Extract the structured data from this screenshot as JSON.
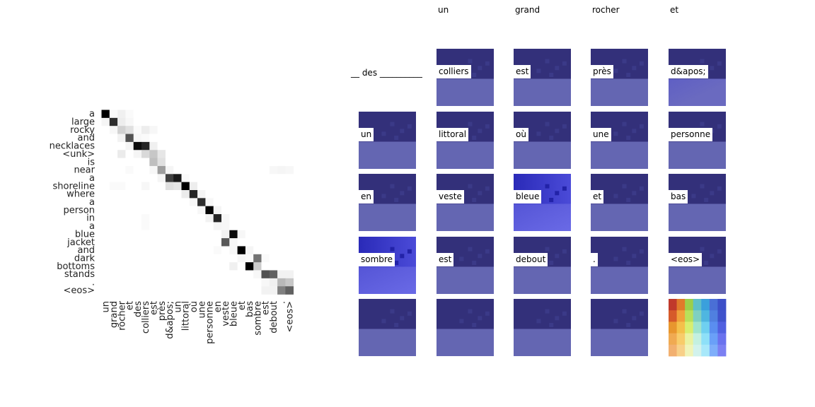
{
  "chart_data": [
    {
      "type": "heatmap",
      "title": "",
      "xlabel": "",
      "ylabel": "",
      "grid": false,
      "y_labels": [
        "a",
        "large",
        "rocky",
        "and",
        "necklaces",
        "<unk>",
        "is",
        "near",
        "a",
        "shoreline",
        "where",
        "a",
        "person",
        "in",
        "a",
        "blue",
        "jacket",
        "and",
        "dark",
        "bottoms",
        "stands",
        ".",
        "<eos>"
      ],
      "x_labels": [
        "un",
        "grand",
        "rocher",
        "et",
        "des",
        "colliers",
        "est",
        "près",
        "d&apos;",
        "un",
        "littoral",
        "où",
        "une",
        "personne",
        "en",
        "veste",
        "bleue",
        "et",
        "bas",
        "sombre",
        "est",
        "debout",
        ".",
        "<eos>"
      ],
      "values": [
        [
          1.0,
          0.02,
          0.06,
          0.02,
          0,
          0,
          0,
          0,
          0,
          0,
          0,
          0,
          0,
          0,
          0,
          0,
          0,
          0,
          0,
          0,
          0,
          0,
          0,
          0
        ],
        [
          0.04,
          0.82,
          0.07,
          0.03,
          0,
          0,
          0,
          0,
          0,
          0,
          0,
          0,
          0,
          0,
          0,
          0,
          0,
          0,
          0,
          0,
          0,
          0,
          0,
          0
        ],
        [
          0,
          0.03,
          0.18,
          0.12,
          0.02,
          0.07,
          0.03,
          0,
          0,
          0,
          0,
          0,
          0,
          0,
          0,
          0,
          0,
          0,
          0,
          0,
          0,
          0,
          0,
          0
        ],
        [
          0,
          0,
          0.05,
          0.68,
          0.03,
          0.02,
          0,
          0,
          0,
          0,
          0,
          0,
          0,
          0,
          0,
          0,
          0,
          0,
          0,
          0,
          0,
          0,
          0,
          0
        ],
        [
          0,
          0,
          0,
          0.04,
          0.95,
          0.85,
          0.06,
          0,
          0,
          0,
          0,
          0,
          0,
          0,
          0,
          0,
          0,
          0,
          0,
          0,
          0,
          0,
          0,
          0
        ],
        [
          0,
          0,
          0.08,
          0,
          0.04,
          0.15,
          0.22,
          0.1,
          0,
          0,
          0,
          0,
          0,
          0,
          0,
          0,
          0,
          0,
          0,
          0,
          0,
          0,
          0,
          0
        ],
        [
          0,
          0,
          0,
          0,
          0,
          0,
          0.25,
          0.12,
          0,
          0,
          0,
          0,
          0,
          0,
          0,
          0,
          0,
          0,
          0,
          0,
          0,
          0,
          0,
          0
        ],
        [
          0,
          0,
          0,
          0.02,
          0,
          0,
          0.03,
          0.38,
          0.04,
          0,
          0,
          0,
          0,
          0,
          0,
          0,
          0,
          0,
          0,
          0,
          0,
          0.03,
          0.04,
          0.03
        ],
        [
          0,
          0,
          0,
          0,
          0,
          0,
          0,
          0.04,
          0.75,
          0.9,
          0.02,
          0,
          0,
          0,
          0,
          0,
          0,
          0,
          0,
          0,
          0,
          0,
          0,
          0
        ],
        [
          0,
          0.02,
          0.02,
          0,
          0,
          0.03,
          0,
          0,
          0.12,
          0.1,
          1.0,
          0.07,
          0,
          0,
          0,
          0,
          0,
          0,
          0,
          0,
          0,
          0,
          0,
          0
        ],
        [
          0,
          0,
          0,
          0,
          0,
          0,
          0,
          0,
          0,
          0,
          0.08,
          0.85,
          0.04,
          0,
          0,
          0,
          0,
          0,
          0,
          0,
          0,
          0,
          0,
          0
        ],
        [
          0,
          0,
          0,
          0,
          0,
          0,
          0,
          0,
          0,
          0,
          0,
          0.03,
          0.82,
          0.03,
          0,
          0,
          0,
          0,
          0,
          0,
          0,
          0,
          0,
          0
        ],
        [
          0,
          0,
          0,
          0,
          0,
          0,
          0,
          0,
          0,
          0,
          0,
          0,
          0.03,
          0.98,
          0.04,
          0,
          0,
          0,
          0,
          0,
          0,
          0,
          0,
          0
        ],
        [
          0,
          0,
          0,
          0,
          0,
          0.02,
          0,
          0,
          0,
          0,
          0,
          0,
          0,
          0.05,
          0.85,
          0.03,
          0,
          0,
          0,
          0,
          0,
          0,
          0,
          0
        ],
        [
          0,
          0,
          0,
          0,
          0,
          0.02,
          0,
          0,
          0,
          0,
          0,
          0,
          0,
          0,
          0.04,
          0.03,
          0,
          0,
          0,
          0,
          0,
          0,
          0,
          0
        ],
        [
          0,
          0,
          0,
          0,
          0,
          0,
          0,
          0,
          0,
          0,
          0,
          0,
          0,
          0,
          0,
          0.05,
          0.95,
          0.03,
          0,
          0,
          0,
          0,
          0,
          0
        ],
        [
          0,
          0,
          0,
          0,
          0,
          0,
          0,
          0,
          0,
          0,
          0,
          0,
          0,
          0,
          0,
          0.65,
          0.03,
          0,
          0,
          0,
          0,
          0,
          0,
          0
        ],
        [
          0,
          0,
          0,
          0,
          0,
          0,
          0,
          0,
          0,
          0,
          0,
          0,
          0,
          0,
          0.02,
          0,
          0.03,
          1.0,
          0.04,
          0,
          0,
          0,
          0,
          0
        ],
        [
          0,
          0,
          0,
          0,
          0,
          0,
          0,
          0,
          0,
          0,
          0,
          0,
          0,
          0,
          0,
          0,
          0,
          0.03,
          0.02,
          0.55,
          0.02,
          0,
          0,
          0
        ],
        [
          0,
          0,
          0,
          0,
          0,
          0,
          0,
          0,
          0,
          0,
          0,
          0,
          0,
          0,
          0,
          0,
          0.06,
          0,
          1.0,
          0.2,
          0,
          0,
          0,
          0
        ],
        [
          0,
          0,
          0,
          0,
          0,
          0,
          0,
          0,
          0,
          0,
          0,
          0,
          0,
          0,
          0,
          0,
          0,
          0,
          0,
          0.03,
          0.68,
          0.62,
          0.05,
          0.05
        ],
        [
          0,
          0,
          0,
          0,
          0,
          0,
          0,
          0,
          0,
          0,
          0,
          0,
          0,
          0,
          0,
          0,
          0,
          0,
          0,
          0,
          0.03,
          0.06,
          0.28,
          0.22
        ],
        [
          0,
          0,
          0,
          0,
          0,
          0,
          0,
          0,
          0,
          0,
          0,
          0,
          0,
          0,
          0,
          0,
          0,
          0,
          0,
          0,
          0.05,
          0.05,
          0.5,
          0.62
        ]
      ],
      "colormap": "greys"
    },
    {
      "type": "heatmap",
      "title": "",
      "query_label": "__ des __________",
      "column_headers": [
        "un",
        "grand",
        "rocher",
        "et"
      ],
      "colormap": "jet",
      "grid": false,
      "words": [
        "colliers",
        "est",
        "près",
        "d&apos;",
        "un",
        "littoral",
        "où",
        "une",
        "personne",
        "en",
        "veste",
        "bleue",
        "et",
        "bas",
        "sombre",
        "est",
        "debout",
        ".",
        "<eos>",
        "",
        "",
        "",
        "",
        ""
      ],
      "cells": [
        {
          "row": 0,
          "col": 0,
          "empty": true
        },
        {
          "row": 0,
          "col": 1,
          "tone": "dark"
        },
        {
          "row": 0,
          "col": 2,
          "tone": "dark"
        },
        {
          "row": 0,
          "col": 3,
          "tone": "dark"
        },
        {
          "row": 0,
          "col": 4,
          "tone": "dark-tl"
        },
        {
          "row": 1,
          "col": 0,
          "tone": "dark"
        },
        {
          "row": 1,
          "col": 1,
          "tone": "dark"
        },
        {
          "row": 1,
          "col": 2,
          "tone": "dark"
        },
        {
          "row": 1,
          "col": 3,
          "tone": "dark"
        },
        {
          "row": 1,
          "col": 4,
          "tone": "dark"
        },
        {
          "row": 2,
          "col": 0,
          "tone": "dark"
        },
        {
          "row": 2,
          "col": 1,
          "tone": "dark"
        },
        {
          "row": 2,
          "col": 2,
          "tone": "bright"
        },
        {
          "row": 2,
          "col": 3,
          "tone": "dark"
        },
        {
          "row": 2,
          "col": 4,
          "tone": "dark"
        },
        {
          "row": 3,
          "col": 0,
          "tone": "bright"
        },
        {
          "row": 3,
          "col": 1,
          "tone": "dark"
        },
        {
          "row": 3,
          "col": 2,
          "tone": "dark"
        },
        {
          "row": 3,
          "col": 3,
          "tone": "dark"
        },
        {
          "row": 3,
          "col": 4,
          "tone": "dark"
        },
        {
          "row": 4,
          "col": 0,
          "tone": "dark"
        },
        {
          "row": 4,
          "col": 1,
          "tone": "dark"
        },
        {
          "row": 4,
          "col": 2,
          "tone": "dark"
        },
        {
          "row": 4,
          "col": 3,
          "tone": "dark"
        },
        {
          "row": 4,
          "col": 4,
          "tone": "rainbow"
        }
      ]
    }
  ]
}
